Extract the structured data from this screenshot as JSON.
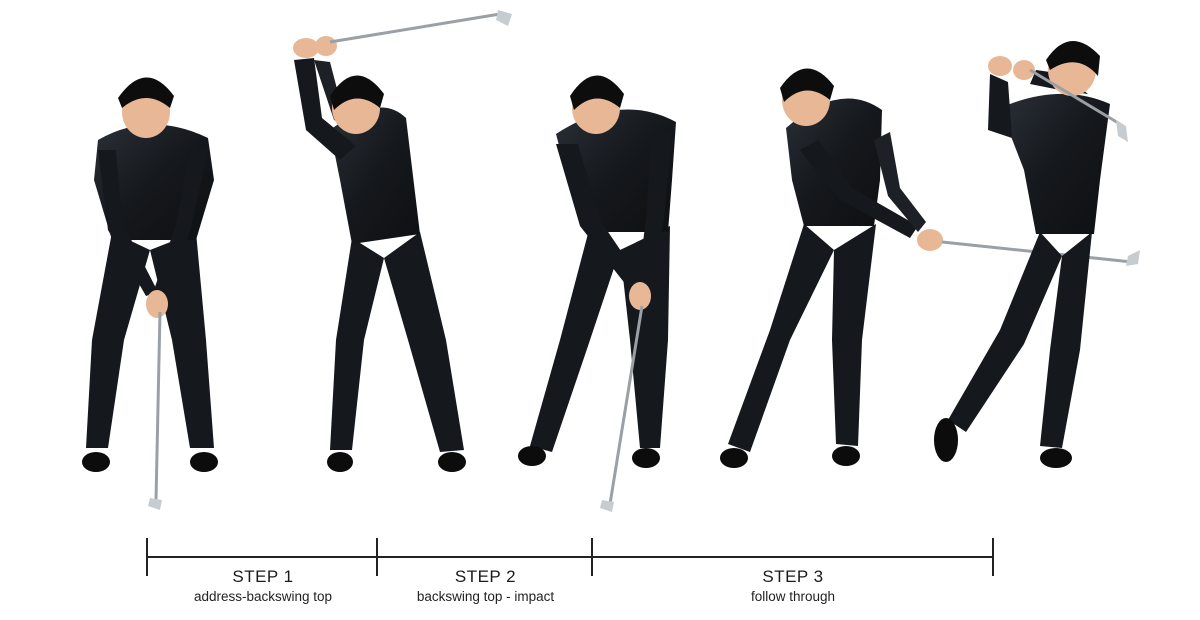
{
  "steps": [
    {
      "title": "STEP 1",
      "subtitle": "address-backswing top"
    },
    {
      "title": "STEP 2",
      "subtitle": "backswing top - impact"
    },
    {
      "title": "STEP 3",
      "subtitle": "follow through"
    }
  ],
  "figures": [
    {
      "pose": "address"
    },
    {
      "pose": "backswing-top"
    },
    {
      "pose": "downswing-impact"
    },
    {
      "pose": "follow-through"
    },
    {
      "pose": "finish"
    }
  ],
  "colors": {
    "outfit": "#15181c",
    "outfit_highlight": "#2b313a",
    "skin": "#e8b896",
    "hair": "#0d0d0d",
    "club_shaft": "#9aa0a6",
    "club_head": "#c7ccd1",
    "line": "#222222",
    "background": "#ffffff"
  }
}
